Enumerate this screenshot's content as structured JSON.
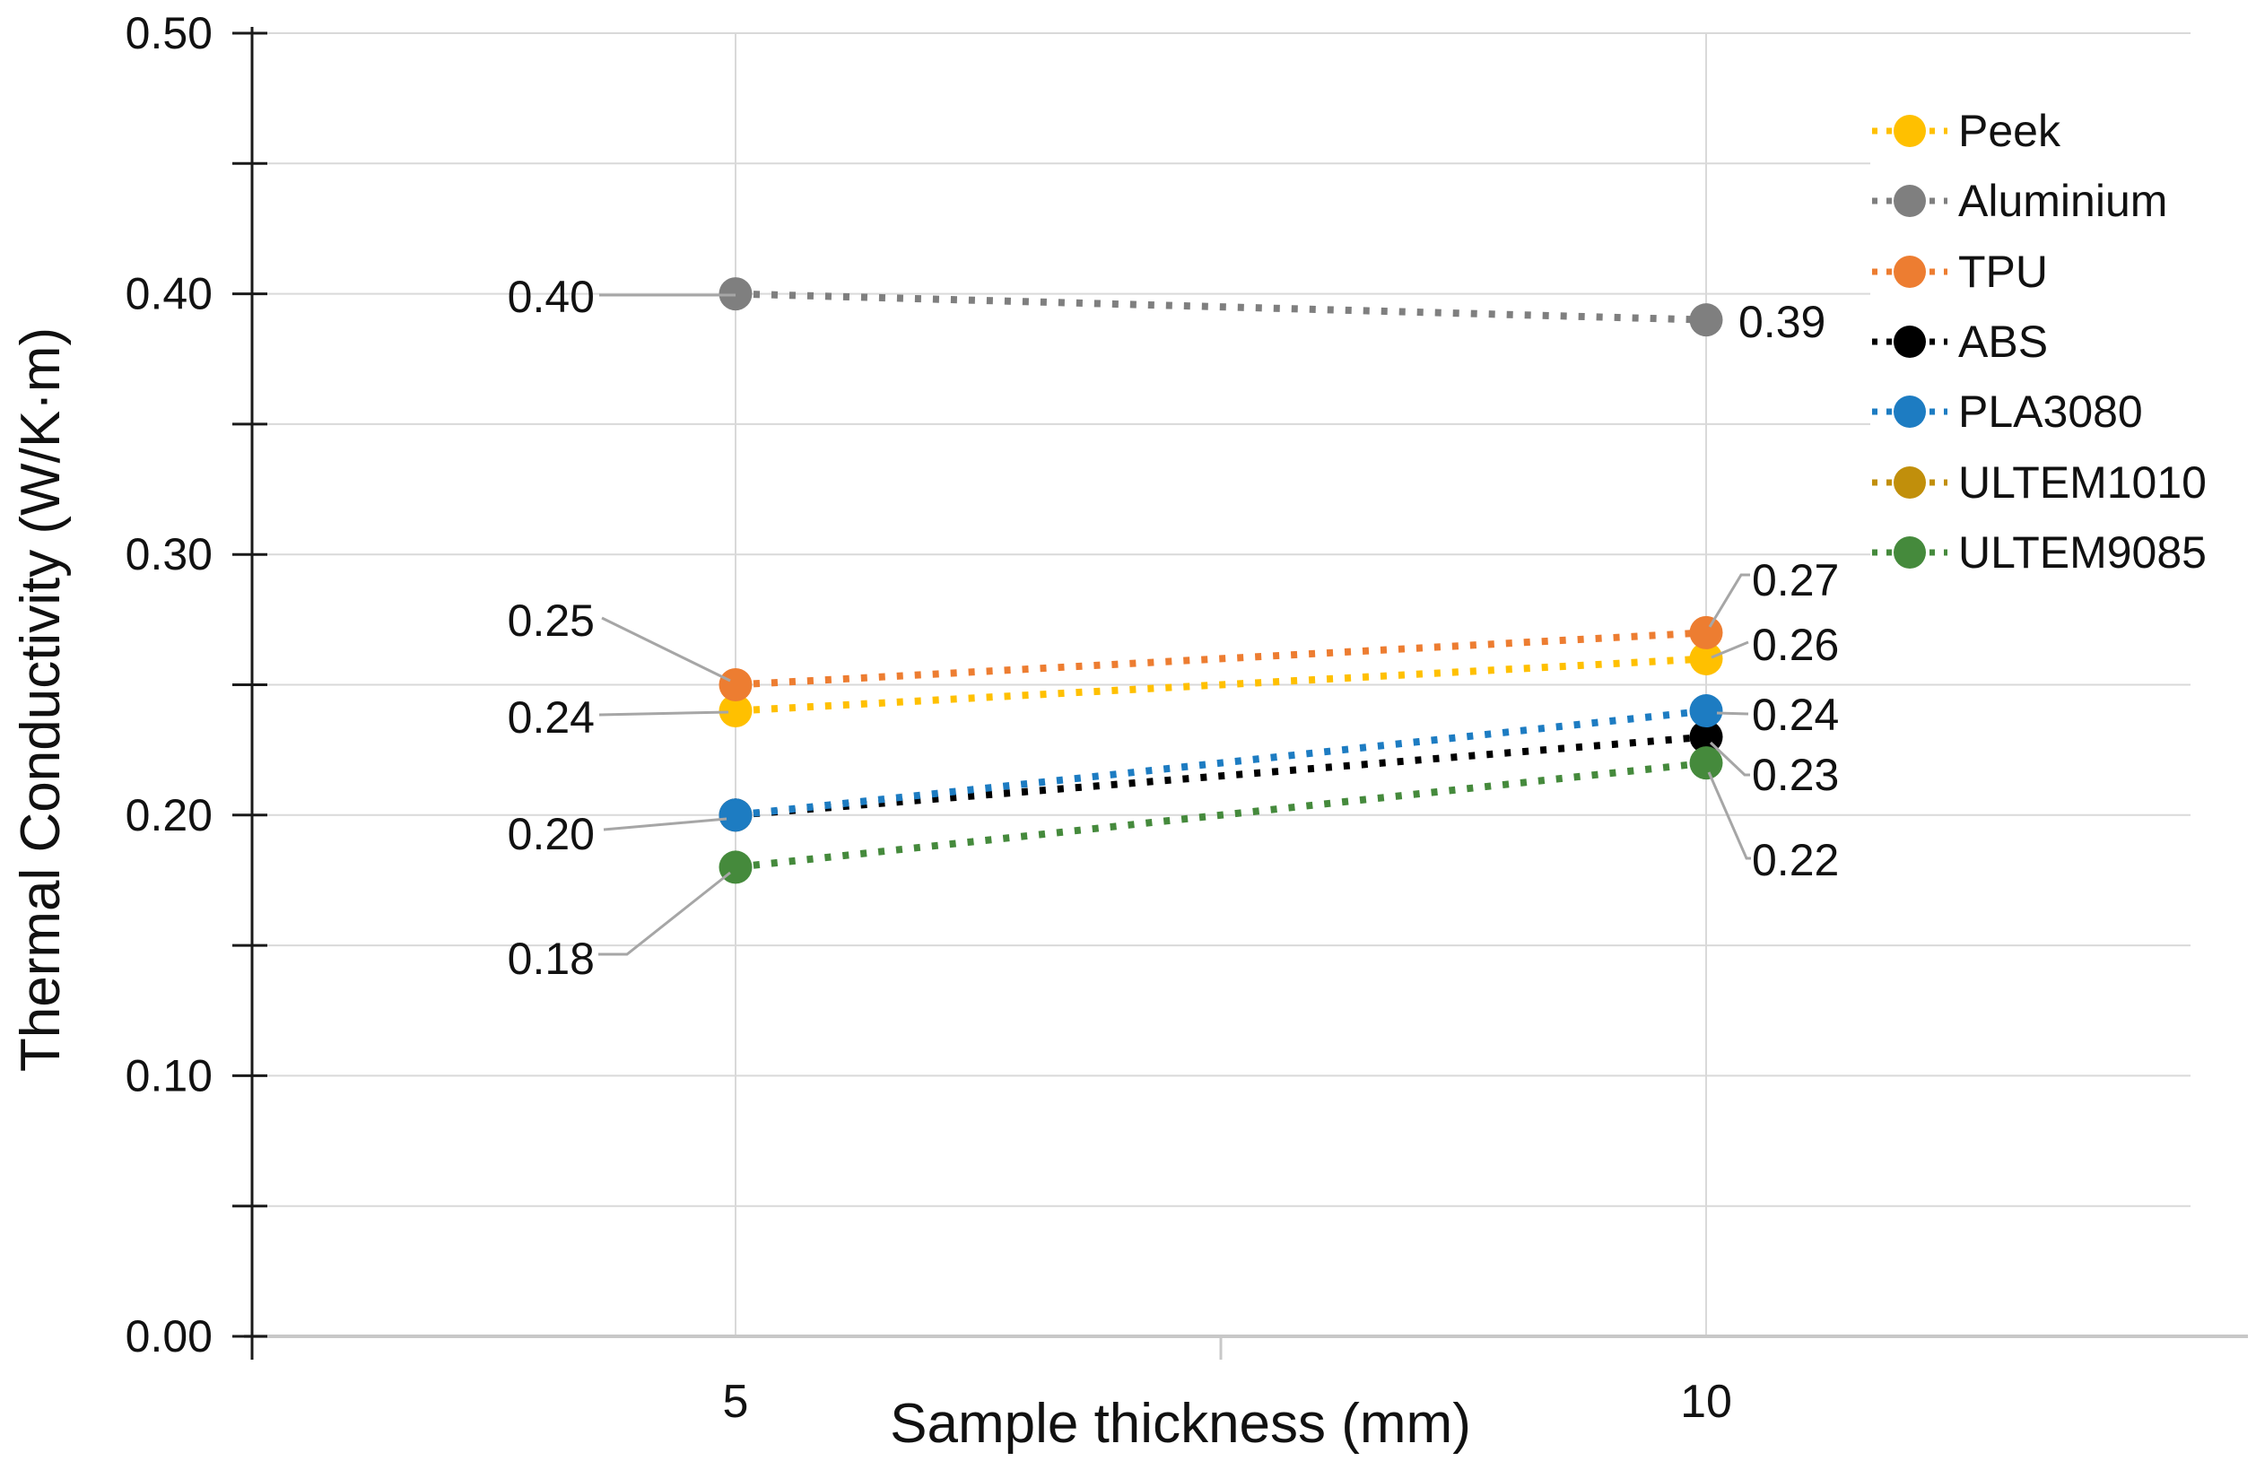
{
  "chart_data": {
    "type": "line",
    "subtype": "dotted lines with circle markers",
    "title": "",
    "xlabel": "Sample thickness (mm)",
    "ylabel": "Thermal Conductivity (W/K·m)",
    "x_categories": [
      "5",
      "10"
    ],
    "ylim": [
      0.0,
      0.5
    ],
    "y_gridline_interval": 0.05,
    "y_label_interval": 0.1,
    "y_tick_labels": [
      "0.00",
      "0.10",
      "0.20",
      "0.30",
      "0.40",
      "0.50"
    ],
    "grid": true,
    "legend_position": "right",
    "series": [
      {
        "name": "Peek",
        "color": "#FFC000",
        "values": [
          0.24,
          0.26
        ]
      },
      {
        "name": "Aluminium",
        "color": "#7F7F7F",
        "values": [
          0.4,
          0.39
        ]
      },
      {
        "name": "TPU",
        "color": "#ED7D31",
        "values": [
          0.25,
          0.27
        ]
      },
      {
        "name": "ABS",
        "color": "#000000",
        "values": [
          0.2,
          0.23
        ]
      },
      {
        "name": "PLA3080",
        "color": "#1D7CC2",
        "values": [
          0.2,
          0.24
        ]
      },
      {
        "name": "ULTEM1010",
        "color": "#C18F0B",
        "values": [
          null,
          null
        ],
        "visibility": "legend entry only; markers hidden behind other series"
      },
      {
        "name": "ULTEM9085",
        "color": "#458A3C",
        "values": [
          0.18,
          0.22
        ]
      }
    ],
    "point_labels": [
      {
        "series": "Aluminium",
        "category": "5",
        "text": "0.40",
        "side": "left",
        "callout": true
      },
      {
        "series": "TPU",
        "category": "5",
        "text": "0.25",
        "side": "left",
        "callout": true
      },
      {
        "series": "Peek",
        "category": "5",
        "text": "0.24",
        "side": "left",
        "callout": true
      },
      {
        "series": "PLA3080",
        "category": "5",
        "text": "0.20",
        "side": "left",
        "callout": true
      },
      {
        "series": "ULTEM9085",
        "category": "5",
        "text": "0.18",
        "side": "left",
        "callout": true
      },
      {
        "series": "Aluminium",
        "category": "10",
        "text": "0.39",
        "side": "right",
        "callout": false
      },
      {
        "series": "TPU",
        "category": "10",
        "text": "0.27",
        "side": "right",
        "callout": true
      },
      {
        "series": "Peek",
        "category": "10",
        "text": "0.26",
        "side": "right",
        "callout": true
      },
      {
        "series": "PLA3080",
        "category": "10",
        "text": "0.24",
        "side": "right",
        "callout": true
      },
      {
        "series": "ABS",
        "category": "10",
        "text": "0.23",
        "side": "right",
        "callout": true
      },
      {
        "series": "ULTEM9085",
        "category": "10",
        "text": "0.22",
        "side": "right",
        "callout": true
      }
    ],
    "colors": {
      "gridline": "#D9D9D9",
      "y_axis_line": "#1A1A1A",
      "x_axis_line": "#C8C8C8",
      "callout": "#A6A6A6",
      "text": "#111111",
      "background": "#FFFFFF"
    }
  }
}
